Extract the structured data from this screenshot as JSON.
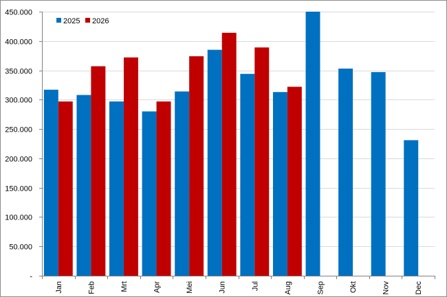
{
  "chart_data": {
    "type": "bar",
    "categories": [
      "Jan",
      "Feb",
      "Mrt",
      "Apr",
      "Mei",
      "Jun",
      "Jul",
      "Aug",
      "Sep",
      "Okt",
      "Nov",
      "Dec"
    ],
    "series": [
      {
        "name": "2025",
        "color": "#0070C0",
        "values": [
          317000,
          308000,
          297000,
          280000,
          314000,
          385000,
          344000,
          313000,
          450000,
          353000,
          347000,
          231000
        ]
      },
      {
        "name": "2026",
        "color": "#C00000",
        "values": [
          297000,
          357000,
          372000,
          297000,
          374000,
          414000,
          389000,
          322000,
          null,
          null,
          null,
          null
        ]
      }
    ],
    "y_ticks": [
      "-",
      "50.000",
      "100.000",
      "150.000",
      "200.000",
      "250.000",
      "300.000",
      "350.000",
      "400.000",
      "450.000"
    ],
    "ylim": [
      0,
      450000
    ],
    "grid": true,
    "legend_position": "top-left",
    "x_tick_rotation": "vertical"
  }
}
